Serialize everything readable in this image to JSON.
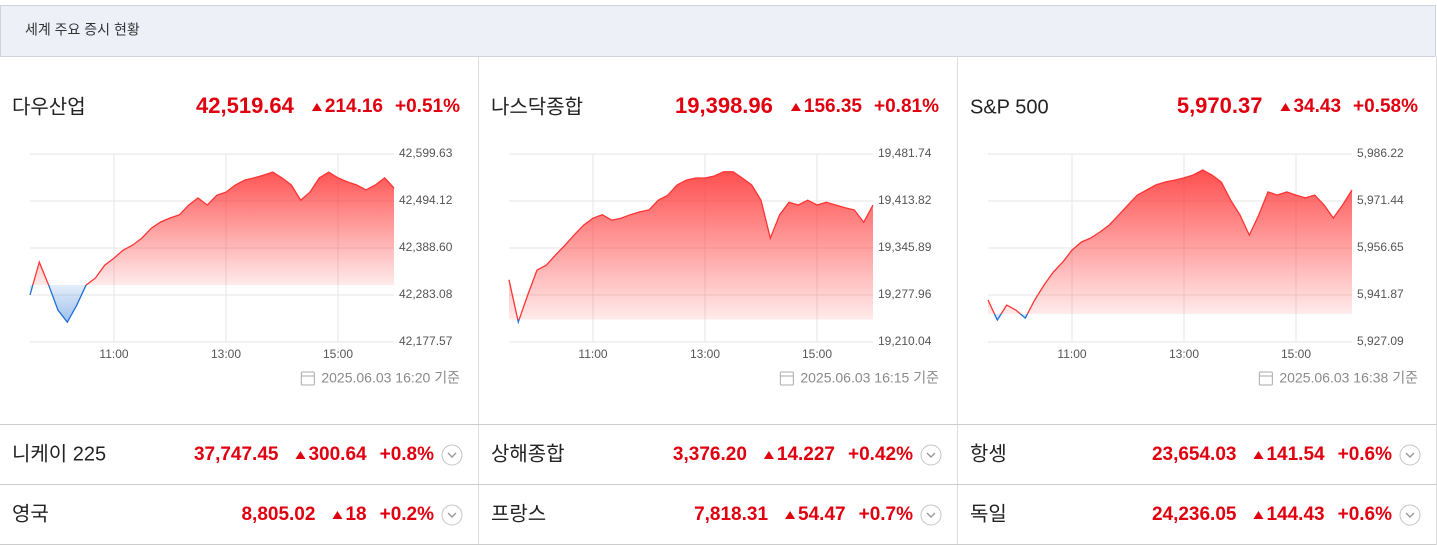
{
  "header": {
    "title": "세계 주요 증시 현황"
  },
  "panels": [
    {
      "name": "다우산업",
      "price": "42,519.64",
      "change": "214.16",
      "change_pct": "+0.51%",
      "timestamp": "2025.06.03 16:20 기준"
    },
    {
      "name": "나스닥종합",
      "price": "19,398.96",
      "change": "156.35",
      "change_pct": "+0.81%",
      "timestamp": "2025.06.03 16:15 기준"
    },
    {
      "name": "S&P 500",
      "price": "5,970.37",
      "change": "34.43",
      "change_pct": "+0.58%",
      "timestamp": "2025.06.03 16:38 기준"
    }
  ],
  "rows": [
    [
      {
        "name": "니케이 225",
        "price": "37,747.45",
        "change": "300.64",
        "change_pct": "+0.8%"
      },
      {
        "name": "상해종합",
        "price": "3,376.20",
        "change": "14.227",
        "change_pct": "+0.42%"
      },
      {
        "name": "항셍",
        "price": "23,654.03",
        "change": "141.54",
        "change_pct": "+0.6%"
      }
    ],
    [
      {
        "name": "영국",
        "price": "8,805.02",
        "change": "18",
        "change_pct": "+0.2%"
      },
      {
        "name": "프랑스",
        "price": "7,818.31",
        "change": "54.47",
        "change_pct": "+0.7%"
      },
      {
        "name": "독일",
        "price": "24,236.05",
        "change": "144.43",
        "change_pct": "+0.6%"
      }
    ]
  ],
  "chart_data": [
    {
      "type": "line",
      "color": "#ff3333",
      "below_color": "#1f6fd6",
      "grid": true,
      "x": [
        "09:30",
        "09:40",
        "09:50",
        "10:00",
        "10:10",
        "10:20",
        "10:30",
        "10:40",
        "10:50",
        "11:00",
        "11:10",
        "11:20",
        "11:30",
        "11:40",
        "11:50",
        "12:00",
        "12:10",
        "12:20",
        "12:30",
        "12:40",
        "12:50",
        "13:00",
        "13:10",
        "13:20",
        "13:30",
        "13:40",
        "13:50",
        "14:00",
        "14:10",
        "14:20",
        "14:30",
        "14:40",
        "14:50",
        "15:00",
        "15:10",
        "15:20",
        "15:30",
        "15:40",
        "15:50",
        "16:00"
      ],
      "values": [
        42283,
        42357,
        42305,
        42249,
        42222,
        42260,
        42305,
        42321,
        42350,
        42366,
        42384,
        42395,
        42411,
        42433,
        42447,
        42456,
        42463,
        42485,
        42501,
        42485,
        42507,
        42514,
        42530,
        42541,
        42546,
        42552,
        42559,
        42546,
        42530,
        42496,
        42514,
        42546,
        42559,
        42546,
        42537,
        42530,
        42519,
        42530,
        42546,
        42523
      ],
      "ylim": [
        42177.57,
        42599.63
      ],
      "yticks": [
        {
          "value": 42177.57,
          "label": "42,177.57"
        },
        {
          "value": 42283.08,
          "label": "42,283.08"
        },
        {
          "value": 42388.6,
          "label": "42,388.60"
        },
        {
          "value": 42494.12,
          "label": "42,494.12"
        },
        {
          "value": 42599.63,
          "label": "42,599.63"
        }
      ],
      "xticks": [
        "11:00",
        "13:00",
        "15:00"
      ]
    },
    {
      "type": "line",
      "color": "#ff3333",
      "below_color": "#1f6fd6",
      "grid": true,
      "x": [
        "09:30",
        "09:40",
        "09:50",
        "10:00",
        "10:10",
        "10:20",
        "10:30",
        "10:40",
        "10:50",
        "11:00",
        "11:10",
        "11:20",
        "11:30",
        "11:40",
        "11:50",
        "12:00",
        "12:10",
        "12:20",
        "12:30",
        "12:40",
        "12:50",
        "13:00",
        "13:10",
        "13:20",
        "13:30",
        "13:40",
        "13:50",
        "14:00",
        "14:10",
        "14:20",
        "14:30",
        "14:40",
        "14:50",
        "15:00",
        "15:10",
        "15:20",
        "15:30",
        "15:40",
        "15:50",
        "16:00"
      ],
      "values": [
        19300,
        19239,
        19278,
        19314,
        19321,
        19336,
        19350,
        19365,
        19379,
        19389,
        19394,
        19386,
        19389,
        19394,
        19398,
        19401,
        19415,
        19422,
        19437,
        19444,
        19447,
        19447,
        19450,
        19456,
        19456,
        19447,
        19437,
        19415,
        19360,
        19394,
        19412,
        19408,
        19415,
        19408,
        19412,
        19408,
        19404,
        19401,
        19383,
        19408
      ],
      "ylim": [
        19210.04,
        19481.74
      ],
      "yticks": [
        {
          "value": 19210.04,
          "label": "19,210.04"
        },
        {
          "value": 19277.96,
          "label": "19,277.96"
        },
        {
          "value": 19345.89,
          "label": "19,345.89"
        },
        {
          "value": 19413.82,
          "label": "19,413.82"
        },
        {
          "value": 19481.74,
          "label": "19,481.74"
        }
      ],
      "xticks": [
        "11:00",
        "13:00",
        "15:00"
      ]
    },
    {
      "type": "line",
      "color": "#ff3333",
      "below_color": "#1f6fd6",
      "grid": true,
      "x": [
        "09:30",
        "09:40",
        "09:50",
        "10:00",
        "10:10",
        "10:20",
        "10:30",
        "10:40",
        "10:50",
        "11:00",
        "11:10",
        "11:20",
        "11:30",
        "11:40",
        "11:50",
        "12:00",
        "12:10",
        "12:20",
        "12:30",
        "12:40",
        "12:50",
        "13:00",
        "13:10",
        "13:20",
        "13:30",
        "13:40",
        "13:50",
        "14:00",
        "14:10",
        "14:20",
        "14:30",
        "14:40",
        "14:50",
        "15:00",
        "15:10",
        "15:20",
        "15:30",
        "15:40",
        "15:50",
        "16:00"
      ],
      "values": [
        5940.3,
        5934.0,
        5938.7,
        5937.1,
        5934.6,
        5940.3,
        5945.0,
        5949.1,
        5952.2,
        5956.0,
        5958.5,
        5959.8,
        5961.7,
        5963.9,
        5967.0,
        5970.2,
        5973.3,
        5974.9,
        5976.5,
        5977.4,
        5978.0,
        5978.7,
        5979.6,
        5981.2,
        5979.6,
        5977.4,
        5971.7,
        5967.0,
        5960.7,
        5967.0,
        5974.3,
        5973.3,
        5974.3,
        5973.3,
        5972.4,
        5973.3,
        5970.2,
        5966.1,
        5970.2,
        5974.9
      ],
      "ylim": [
        5927.09,
        5986.22
      ],
      "yticks": [
        {
          "value": 5927.09,
          "label": "5,927.09"
        },
        {
          "value": 5941.87,
          "label": "5,941.87"
        },
        {
          "value": 5956.65,
          "label": "5,956.65"
        },
        {
          "value": 5971.44,
          "label": "5,971.44"
        },
        {
          "value": 5986.22,
          "label": "5,986.22"
        }
      ],
      "xticks": [
        "11:00",
        "13:00",
        "15:00"
      ]
    }
  ]
}
